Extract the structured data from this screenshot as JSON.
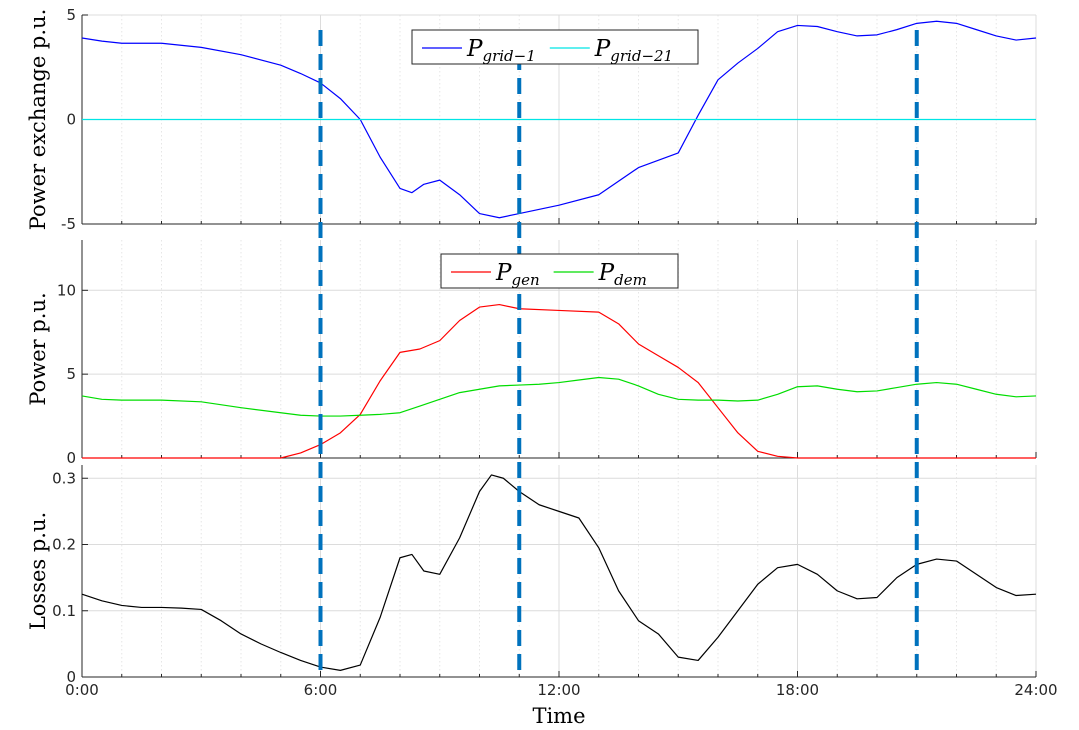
{
  "chart_data": [
    {
      "type": "line",
      "ylabel": "Power exchange p.u.",
      "xlim": [
        0,
        24
      ],
      "ylim": [
        -5,
        5
      ],
      "yticks": [
        -5,
        0,
        5
      ],
      "ytick_labels": [
        "-5",
        "0",
        "5"
      ],
      "grid": true,
      "legend": "top-center",
      "series": [
        {
          "name_base": "P",
          "name_sub": "grid−1",
          "color": "#0000ff",
          "x": [
            0,
            0.5,
            1,
            2,
            3,
            4,
            5,
            5.5,
            6,
            6.5,
            7,
            7.5,
            8,
            8.3,
            8.6,
            9,
            9.5,
            10,
            10.5,
            11,
            12,
            13,
            14,
            15,
            15.5,
            16,
            16.5,
            17,
            17.5,
            18,
            18.5,
            19,
            19.5,
            20,
            20.5,
            21,
            21.5,
            22,
            22.5,
            23,
            23.5,
            24
          ],
          "y": [
            3.9,
            3.75,
            3.65,
            3.65,
            3.45,
            3.1,
            2.6,
            2.2,
            1.75,
            1.0,
            0,
            -1.8,
            -3.3,
            -3.5,
            -3.1,
            -2.9,
            -3.6,
            -4.5,
            -4.7,
            -4.5,
            -4.1,
            -3.6,
            -2.3,
            -1.6,
            0.2,
            1.9,
            2.7,
            3.4,
            4.2,
            4.5,
            4.45,
            4.2,
            4.0,
            4.05,
            4.3,
            4.6,
            4.7,
            4.6,
            4.3,
            4.0,
            3.8,
            3.9
          ]
        },
        {
          "name_base": "P",
          "name_sub": "grid−21",
          "color": "#00e5e5",
          "x": [
            0,
            24
          ],
          "y": [
            0,
            0
          ]
        }
      ]
    },
    {
      "type": "line",
      "ylabel": "Power p.u.",
      "xlim": [
        0,
        24
      ],
      "ylim": [
        0,
        13
      ],
      "yticks": [
        0,
        5,
        10
      ],
      "ytick_labels": [
        "0",
        "5",
        "10"
      ],
      "grid": true,
      "legend": "top-center",
      "series": [
        {
          "name_base": "P",
          "name_sub": "gen",
          "color": "#ff0000",
          "x": [
            0,
            4,
            5,
            5.5,
            6,
            6.5,
            7,
            7.5,
            8,
            8.5,
            9,
            9.5,
            10,
            10.5,
            11,
            12,
            13,
            13.5,
            14,
            14.5,
            15,
            15.5,
            16,
            16.5,
            17,
            17.5,
            18,
            24
          ],
          "y": [
            0,
            0,
            0,
            0.3,
            0.8,
            1.5,
            2.6,
            4.6,
            6.3,
            6.5,
            7.0,
            8.2,
            9.0,
            9.15,
            8.9,
            8.8,
            8.7,
            8.0,
            6.8,
            6.1,
            5.4,
            4.5,
            3.0,
            1.5,
            0.4,
            0.1,
            0,
            0
          ]
        },
        {
          "name_base": "P",
          "name_sub": "dem",
          "color": "#00dd00",
          "x": [
            0,
            0.5,
            1,
            2,
            3,
            4,
            5,
            5.5,
            6,
            6.5,
            7,
            7.5,
            8,
            8.5,
            9,
            9.5,
            10,
            10.5,
            11,
            11.5,
            12,
            12.5,
            13,
            13.5,
            14,
            14.5,
            15,
            15.5,
            16,
            16.5,
            17,
            17.5,
            18,
            18.5,
            19,
            19.5,
            20,
            20.5,
            21,
            21.5,
            22,
            22.5,
            23,
            23.5,
            24
          ],
          "y": [
            3.7,
            3.5,
            3.45,
            3.45,
            3.35,
            3.0,
            2.7,
            2.55,
            2.5,
            2.5,
            2.55,
            2.6,
            2.7,
            3.1,
            3.5,
            3.9,
            4.1,
            4.3,
            4.35,
            4.4,
            4.5,
            4.65,
            4.8,
            4.7,
            4.3,
            3.8,
            3.5,
            3.45,
            3.45,
            3.4,
            3.45,
            3.8,
            4.25,
            4.3,
            4.1,
            3.95,
            4.0,
            4.2,
            4.4,
            4.5,
            4.4,
            4.1,
            3.8,
            3.65,
            3.7
          ]
        }
      ]
    },
    {
      "type": "line",
      "ylabel": "Losses p.u.",
      "xlabel": "Time",
      "xlim": [
        0,
        24
      ],
      "ylim": [
        0,
        0.32
      ],
      "yticks": [
        0,
        0.1,
        0.2,
        0.3
      ],
      "ytick_labels": [
        "0",
        "0.1",
        "0.2",
        "0.3"
      ],
      "xticks": [
        0,
        6,
        12,
        18,
        24
      ],
      "xtick_labels": [
        "0:00",
        "6:00",
        "12:00",
        "18:00",
        "24:00"
      ],
      "grid": true,
      "series": [
        {
          "color": "#000000",
          "x": [
            0,
            0.5,
            1,
            1.5,
            2,
            2.5,
            3,
            3.5,
            4,
            4.5,
            5,
            5.5,
            6,
            6.5,
            7,
            7.5,
            8,
            8.3,
            8.6,
            9,
            9.5,
            10,
            10.3,
            10.6,
            11,
            11.5,
            12,
            12.5,
            13,
            13.5,
            14,
            14.5,
            15,
            15.5,
            16,
            16.5,
            17,
            17.5,
            18,
            18.5,
            19,
            19.5,
            20,
            20.5,
            21,
            21.5,
            22,
            22.5,
            23,
            23.5,
            24
          ],
          "y": [
            0.125,
            0.115,
            0.108,
            0.105,
            0.105,
            0.104,
            0.102,
            0.085,
            0.065,
            0.05,
            0.037,
            0.025,
            0.015,
            0.01,
            0.018,
            0.09,
            0.18,
            0.185,
            0.16,
            0.155,
            0.21,
            0.28,
            0.305,
            0.3,
            0.28,
            0.26,
            0.25,
            0.24,
            0.195,
            0.13,
            0.085,
            0.065,
            0.03,
            0.025,
            0.06,
            0.1,
            0.14,
            0.165,
            0.17,
            0.155,
            0.13,
            0.118,
            0.12,
            0.15,
            0.17,
            0.178,
            0.175,
            0.155,
            0.135,
            0.123,
            0.125
          ]
        }
      ]
    }
  ],
  "vlines": {
    "x": [
      6,
      11,
      21
    ],
    "color": "#0072bd"
  },
  "shared_xlim": [
    0,
    24
  ]
}
